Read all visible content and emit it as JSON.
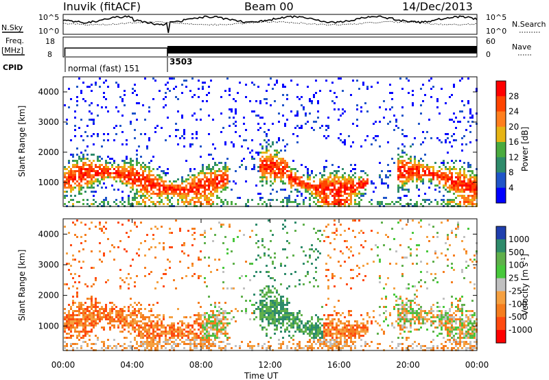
{
  "header": {
    "station": "Inuvik (fitACF)",
    "beam": "Beam 00",
    "date": "14/Dec/2013"
  },
  "chart_data": [
    {
      "type": "line",
      "name": "noise-panel",
      "ylabel_left": "N.Sky",
      "ylabel_right": "N.Search",
      "left_ticks": [
        "10^5",
        "10^0"
      ],
      "right_ticks": [
        "10^5",
        "10^0"
      ],
      "yscale": "log",
      "x_range_hours": [
        0,
        24
      ]
    },
    {
      "type": "line",
      "name": "frequency-panel",
      "ylabel_left": "Freq. [MHz]",
      "ylabel_right": "Nave",
      "left_ticks": [
        "18",
        "8"
      ],
      "right_ticks": [
        "60",
        "0"
      ],
      "x_range_hours": [
        0,
        24
      ]
    },
    {
      "type": "table",
      "name": "cpid-strip",
      "label": "CPID",
      "segments": [
        {
          "start_hour": 0,
          "end_hour": 6.05,
          "text": "normal (fast) 151"
        },
        {
          "start_hour": 6.05,
          "end_hour": 24,
          "text": "3503"
        }
      ]
    },
    {
      "type": "heatmap",
      "name": "power-panel",
      "ylabel": "Slant Range [km]",
      "yticks": [
        1000,
        2000,
        3000,
        4000
      ],
      "ylim": [
        200,
        4500
      ],
      "xlim_hours": [
        0,
        24
      ],
      "colorbar": {
        "label": "Power [dB]",
        "ticks": [
          "28",
          "24",
          "20",
          "16",
          "12",
          "8",
          "4"
        ],
        "colors": [
          "#ff0000",
          "#ff4400",
          "#ff7f1e",
          "#e6b415",
          "#4aab3f",
          "#2e8b6b",
          "#1f55c8",
          "#0000ff"
        ]
      }
    },
    {
      "type": "heatmap",
      "name": "velocity-panel",
      "ylabel": "Slant Range [km]",
      "yticks": [
        1000,
        2000,
        3000,
        4000
      ],
      "ylim": [
        200,
        4500
      ],
      "xlim_hours": [
        0,
        24
      ],
      "colorbar": {
        "label": "Velocity [m s^-1]",
        "ticks": [
          "1000",
          "500",
          "100",
          "25",
          "-25",
          "-100",
          "-500",
          "-1000"
        ],
        "colors": [
          "#1f3fae",
          "#2e8b6b",
          "#5fb04b",
          "#48c83c",
          "#c0c0c0",
          "#f5a040",
          "#f57d1e",
          "#ff4a10",
          "#ff0000"
        ]
      }
    }
  ],
  "x_axis": {
    "ticks": [
      "00:00",
      "04:00",
      "08:00",
      "12:00",
      "16:00",
      "20:00",
      "00:00"
    ],
    "label": "Time UT"
  }
}
